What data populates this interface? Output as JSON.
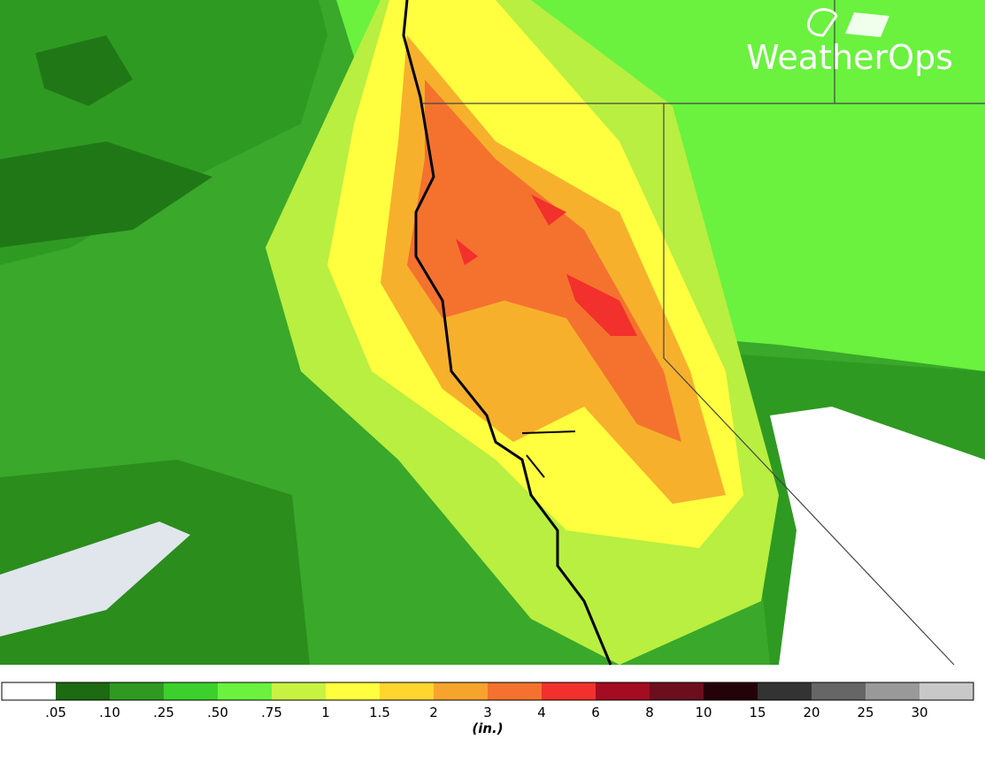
{
  "logo": {
    "text": "WeatherOps"
  },
  "legend": {
    "colors": [
      "#ffffff",
      "#1c6a12",
      "#2e9a22",
      "#3cd02c",
      "#6af23e",
      "#c8f242",
      "#ffff40",
      "#ffd52e",
      "#f7a42c",
      "#f4722e",
      "#f2302c",
      "#a40c22",
      "#6c0e1e",
      "#240308",
      "#333333",
      "#666666",
      "#999999",
      "#c8c8c8"
    ],
    "labels": [
      ".05",
      ".10",
      ".25",
      ".50",
      ".75",
      "1",
      "1.5",
      "2",
      "3",
      "4",
      "6",
      "8",
      "10",
      "15",
      "20",
      "25",
      "30"
    ],
    "unit": "(in.)"
  }
}
